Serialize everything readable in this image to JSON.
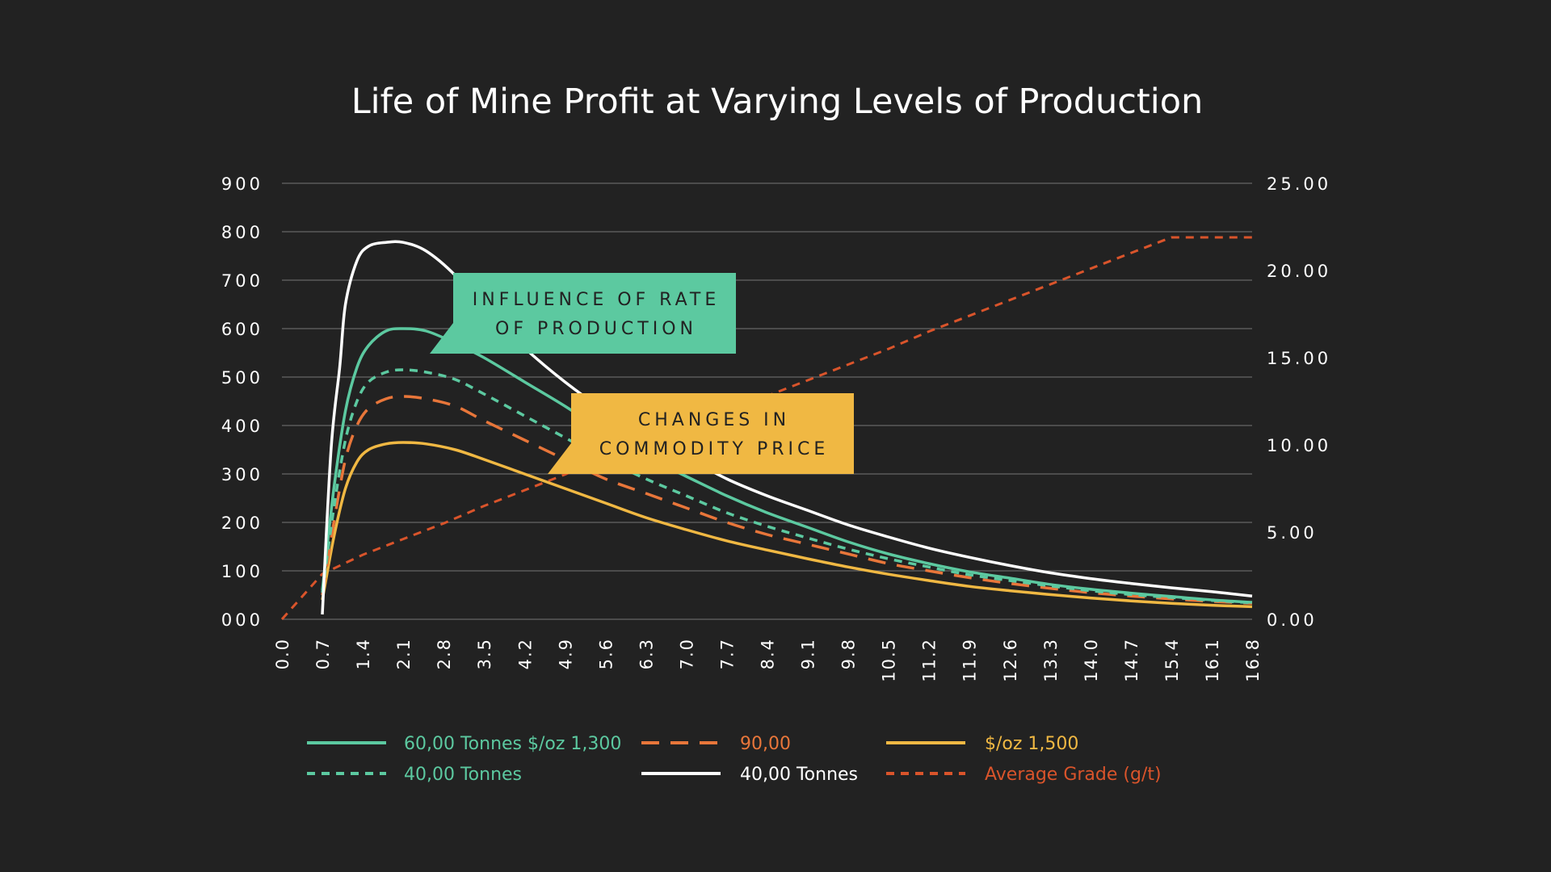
{
  "chart_data": {
    "type": "line",
    "title": "Life of Mine Profit at Varying Levels of Production",
    "xlabel": "",
    "ylabel": "",
    "x_ticks": [
      "0.0",
      "0.7",
      "1.4",
      "2.1",
      "2.8",
      "3.5",
      "4.2",
      "4.9",
      "5.6",
      "6.3",
      "7.0",
      "7.7",
      "8.4",
      "9.1",
      "9.8",
      "10.5",
      "11.2",
      "11.9",
      "12.6",
      "13.3",
      "14.0",
      "14.7",
      "15.4",
      "16.1",
      "16.8"
    ],
    "xlim": [
      0,
      16.8
    ],
    "ylim": [
      0,
      900
    ],
    "y_ticks": [
      "000",
      "100",
      "200",
      "300",
      "400",
      "500",
      "600",
      "700",
      "800",
      "900"
    ],
    "y2lim": [
      0,
      25
    ],
    "y2_ticks": [
      "0.00",
      "5.00",
      "10.00",
      "15.00",
      "20.00",
      "25.00"
    ],
    "grid": true,
    "legend_position": "bottom",
    "series": [
      {
        "name": "60,00 Tonnes $/oz 1,300",
        "color": "#5cc9a0",
        "dash": "solid",
        "axis": "left",
        "x": [
          0.7,
          0.9,
          1.1,
          1.3,
          1.5,
          1.8,
          2.1,
          2.5,
          3.0,
          3.5,
          4.2,
          4.9,
          5.6,
          6.3,
          7.0,
          7.7,
          8.4,
          9.1,
          9.8,
          10.5,
          11.2,
          11.9,
          12.6,
          13.3,
          14.0,
          14.7,
          15.4,
          16.1,
          16.8
        ],
        "y": [
          60,
          270,
          430,
          520,
          565,
          595,
          600,
          595,
          570,
          540,
          490,
          440,
          385,
          335,
          295,
          255,
          220,
          190,
          160,
          135,
          115,
          98,
          85,
          72,
          62,
          54,
          47,
          40,
          35
        ]
      },
      {
        "name": "90,00",
        "color": "#e8763a",
        "dash": "long",
        "axis": "left",
        "x": [
          0.7,
          0.9,
          1.1,
          1.3,
          1.5,
          1.8,
          2.1,
          2.5,
          3.0,
          3.5,
          4.2,
          4.9,
          5.6,
          6.3,
          7.0,
          7.7,
          8.4,
          9.1,
          9.8,
          10.5,
          11.2,
          11.9,
          12.6,
          13.3,
          14.0,
          14.7,
          15.4,
          16.1,
          16.8
        ],
        "y": [
          50,
          200,
          330,
          400,
          435,
          455,
          460,
          455,
          440,
          410,
          370,
          330,
          290,
          260,
          230,
          200,
          175,
          155,
          135,
          115,
          100,
          86,
          74,
          64,
          55,
          48,
          42,
          37,
          33
        ]
      },
      {
        "name": "$/oz 1,500",
        "color": "#f0b843",
        "dash": "solid",
        "axis": "left",
        "x": [
          0.7,
          0.9,
          1.1,
          1.3,
          1.5,
          1.8,
          2.1,
          2.5,
          3.0,
          3.5,
          4.2,
          4.9,
          5.6,
          6.3,
          7.0,
          7.7,
          8.4,
          9.1,
          9.8,
          10.5,
          11.2,
          11.9,
          12.6,
          13.3,
          14.0,
          14.7,
          15.4,
          16.1,
          16.8
        ],
        "y": [
          40,
          170,
          270,
          325,
          350,
          362,
          365,
          362,
          350,
          330,
          300,
          270,
          240,
          210,
          185,
          162,
          143,
          125,
          108,
          93,
          80,
          68,
          59,
          51,
          44,
          38,
          33,
          29,
          26
        ]
      },
      {
        "name": "40,00 Tonnes",
        "color": "#5cc9a0",
        "dash": "short",
        "axis": "left",
        "x": [
          0.7,
          0.9,
          1.1,
          1.3,
          1.5,
          1.8,
          2.1,
          2.5,
          3.0,
          3.5,
          4.2,
          4.9,
          5.6,
          6.3,
          7.0,
          7.7,
          8.4,
          9.1,
          9.8,
          10.5,
          11.2,
          11.9,
          12.6,
          13.3,
          14.0,
          14.7,
          15.4,
          16.1,
          16.8
        ],
        "y": [
          55,
          230,
          370,
          450,
          490,
          510,
          515,
          510,
          495,
          465,
          420,
          375,
          330,
          290,
          255,
          220,
          192,
          168,
          145,
          125,
          108,
          92,
          80,
          69,
          59,
          51,
          45,
          39,
          34
        ]
      },
      {
        "name": "40,00 Tonnes",
        "color": "#ffffff",
        "dash": "solid",
        "axis": "left",
        "x": [
          0.7,
          0.85,
          1.0,
          1.1,
          1.3,
          1.5,
          1.8,
          2.1,
          2.5,
          3.0,
          3.5,
          4.2,
          4.9,
          5.6,
          6.3,
          7.0,
          7.7,
          8.4,
          9.1,
          9.8,
          10.5,
          11.2,
          11.9,
          12.6,
          13.3,
          14.0,
          14.7,
          15.4,
          16.1,
          16.8
        ],
        "y": [
          10,
          350,
          520,
          650,
          740,
          770,
          778,
          778,
          760,
          710,
          640,
          560,
          490,
          430,
          380,
          335,
          290,
          255,
          225,
          195,
          170,
          147,
          128,
          111,
          96,
          84,
          74,
          65,
          57,
          48
        ]
      },
      {
        "name": "Average Grade (g/t)",
        "color": "#d9542b",
        "dash": "short",
        "axis": "right",
        "x": [
          0.0,
          0.7,
          1.4,
          2.1,
          2.8,
          3.5,
          4.2,
          4.9,
          5.6,
          6.3,
          7.0,
          7.7,
          8.4,
          9.1,
          9.8,
          10.5,
          11.2,
          11.9,
          12.6,
          13.3,
          14.0,
          14.7,
          15.4,
          16.1,
          16.8
        ],
        "y": [
          0.0,
          2.6,
          3.7,
          4.6,
          5.5,
          6.5,
          7.4,
          8.3,
          9.3,
          10.1,
          11.0,
          12.0,
          12.8,
          13.7,
          14.6,
          15.5,
          16.5,
          17.4,
          18.3,
          19.2,
          20.1,
          21.0,
          21.9,
          21.9,
          21.9
        ]
      }
    ],
    "annotations": [
      {
        "lines": [
          "INFLUENCE OF RATE",
          "OF PRODUCTION"
        ],
        "color": "#5cc9a0"
      },
      {
        "lines": [
          "CHANGES IN",
          "COMMODITY PRICE"
        ],
        "color": "#f0b843"
      }
    ]
  }
}
